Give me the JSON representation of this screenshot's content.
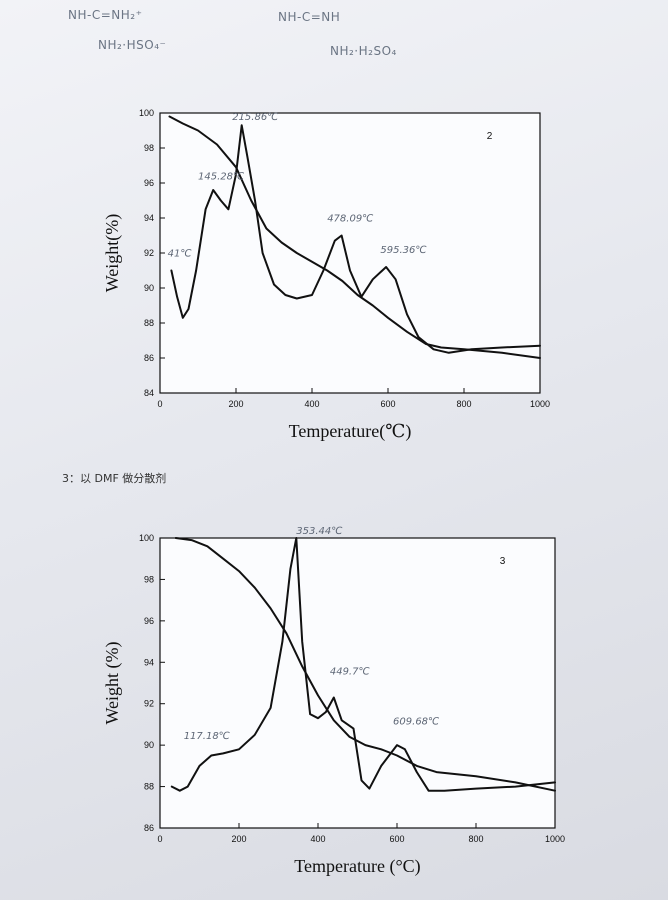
{
  "notes": {
    "formula_left_top": "NH-C=NH₂⁺",
    "formula_left_bottom": "NH₂·HSO₄⁻",
    "formula_right_top": "NH-C=NH",
    "formula_right_bottom": "NH₂·H₂SO₄"
  },
  "section_caption": "3：以 DMF 做分散剂",
  "chart_data": [
    {
      "type": "line",
      "panel_label": "2",
      "xlabel": "Temperature(℃)",
      "ylabel": "Weight(%)",
      "xlim": [
        0,
        1000
      ],
      "ylim": [
        84,
        100
      ],
      "xticks": [
        "0",
        "200",
        "400",
        "600",
        "800",
        "1000"
      ],
      "yticks": [
        "84",
        "86",
        "88",
        "90",
        "92",
        "94",
        "96",
        "98",
        "100"
      ],
      "series": [
        {
          "x": [
            25,
            60,
            100,
            150,
            200,
            240,
            280,
            320,
            360,
            400,
            440,
            480,
            520,
            560,
            600,
            650,
            700,
            740,
            800,
            900,
            1000
          ],
          "y": [
            99.8,
            99.4,
            99.0,
            98.2,
            96.9,
            95.0,
            93.4,
            92.6,
            92.0,
            91.5,
            91.0,
            90.4,
            89.6,
            89.0,
            88.3,
            87.5,
            86.8,
            86.6,
            86.5,
            86.3,
            86.0
          ]
        },
        {
          "x": [
            30,
            45,
            60,
            75,
            95,
            120,
            140,
            160,
            180,
            200,
            215,
            230,
            250,
            270,
            300,
            330,
            360,
            400,
            430,
            460,
            478,
            500,
            530,
            560,
            595,
            620,
            650,
            680,
            720,
            760,
            820,
            900,
            1000
          ],
          "y": [
            91.0,
            89.5,
            88.3,
            88.8,
            91.0,
            94.5,
            95.6,
            95.0,
            94.5,
            96.5,
            99.3,
            97.5,
            95.0,
            92.0,
            90.2,
            89.6,
            89.4,
            89.6,
            91.0,
            92.7,
            93.0,
            91.0,
            89.5,
            90.5,
            91.2,
            90.5,
            88.5,
            87.2,
            86.5,
            86.3,
            86.5,
            86.6,
            86.7
          ]
        }
      ],
      "annotations": [
        {
          "text": "41℃",
          "x": 20,
          "y": 91.8
        },
        {
          "text": "145.28℃",
          "x": 100,
          "y": 96.2
        },
        {
          "text": "215.86℃",
          "x": 190,
          "y": 99.6
        },
        {
          "text": "478.09℃",
          "x": 440,
          "y": 93.8
        },
        {
          "text": "595.36℃",
          "x": 580,
          "y": 92.0
        }
      ]
    },
    {
      "type": "line",
      "panel_label": "3",
      "xlabel": "Temperature (°C)",
      "ylabel": "Weight (%)",
      "xlim": [
        0,
        1000
      ],
      "ylim": [
        86,
        100
      ],
      "xticks": [
        "0",
        "200",
        "400",
        "600",
        "800",
        "1000"
      ],
      "yticks": [
        "86",
        "88",
        "90",
        "92",
        "94",
        "96",
        "98",
        "100"
      ],
      "series": [
        {
          "x": [
            40,
            80,
            120,
            160,
            200,
            240,
            280,
            320,
            360,
            400,
            440,
            480,
            520,
            560,
            600,
            650,
            700,
            800,
            900,
            1000
          ],
          "y": [
            100.0,
            99.9,
            99.6,
            99.0,
            98.4,
            97.6,
            96.6,
            95.4,
            93.8,
            92.4,
            91.2,
            90.4,
            90.0,
            89.8,
            89.5,
            89.0,
            88.7,
            88.5,
            88.2,
            87.8
          ]
        },
        {
          "x": [
            30,
            50,
            70,
            100,
            130,
            160,
            200,
            240,
            280,
            310,
            330,
            345,
            360,
            380,
            400,
            420,
            440,
            460,
            490,
            510,
            530,
            560,
            600,
            620,
            650,
            680,
            720,
            800,
            900,
            1000
          ],
          "y": [
            88.0,
            87.8,
            88.0,
            89.0,
            89.5,
            89.6,
            89.8,
            90.5,
            91.8,
            95.0,
            98.5,
            100.0,
            95.0,
            91.5,
            91.3,
            91.6,
            92.3,
            91.2,
            90.8,
            88.3,
            87.9,
            89.0,
            90.0,
            89.8,
            88.7,
            87.8,
            87.8,
            87.9,
            88.0,
            88.2
          ]
        }
      ],
      "annotations": [
        {
          "text": "117.18℃",
          "x": 60,
          "y": 90.3
        },
        {
          "text": "353.44℃",
          "x": 345,
          "y": 100.2
        },
        {
          "text": "449.7℃",
          "x": 430,
          "y": 93.4
        },
        {
          "text": "609.68℃",
          "x": 590,
          "y": 91.0
        }
      ]
    }
  ]
}
